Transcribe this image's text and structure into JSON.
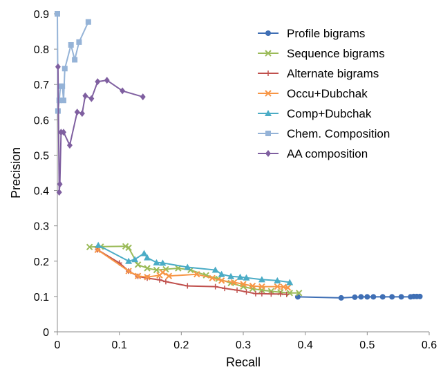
{
  "chart_data": {
    "type": "line",
    "title": "",
    "xlabel": "Recall",
    "ylabel": "Precision",
    "xlim": [
      0,
      0.6
    ],
    "ylim": [
      0,
      0.9
    ],
    "x_ticks": [
      "0",
      "0.1",
      "0.2",
      "0.3",
      "0.4",
      "0.5",
      "0.6"
    ],
    "y_ticks": [
      "0",
      "0.1",
      "0.2",
      "0.3",
      "0.4",
      "0.5",
      "0.6",
      "0.7",
      "0.8",
      "0.9"
    ],
    "grid": false,
    "legend_position": "top-right",
    "series": [
      {
        "name": "Profile bigrams",
        "color": "#3F6FB5",
        "marker": "circle",
        "points": [
          [
            0.388,
            0.099
          ],
          [
            0.458,
            0.096
          ],
          [
            0.48,
            0.098
          ],
          [
            0.49,
            0.099
          ],
          [
            0.5,
            0.099
          ],
          [
            0.51,
            0.099
          ],
          [
            0.525,
            0.099
          ],
          [
            0.54,
            0.099
          ],
          [
            0.555,
            0.099
          ],
          [
            0.57,
            0.099
          ],
          [
            0.575,
            0.1
          ],
          [
            0.58,
            0.1
          ],
          [
            0.585,
            0.1
          ]
        ]
      },
      {
        "name": "Sequence bigrams",
        "color": "#9BBB59",
        "marker": "x",
        "points": [
          [
            0.052,
            0.24
          ],
          [
            0.07,
            0.241
          ],
          [
            0.11,
            0.242
          ],
          [
            0.115,
            0.238
          ],
          [
            0.13,
            0.19
          ],
          [
            0.145,
            0.18
          ],
          [
            0.16,
            0.175
          ],
          [
            0.175,
            0.177
          ],
          [
            0.195,
            0.18
          ],
          [
            0.215,
            0.175
          ],
          [
            0.24,
            0.16
          ],
          [
            0.26,
            0.15
          ],
          [
            0.28,
            0.138
          ],
          [
            0.3,
            0.128
          ],
          [
            0.315,
            0.122
          ],
          [
            0.33,
            0.118
          ],
          [
            0.345,
            0.115
          ],
          [
            0.36,
            0.112
          ],
          [
            0.375,
            0.11
          ],
          [
            0.39,
            0.11
          ]
        ]
      },
      {
        "name": "Alternate bigrams",
        "color": "#C0504D",
        "marker": "plus",
        "points": [
          [
            0.065,
            0.232
          ],
          [
            0.1,
            0.195
          ],
          [
            0.115,
            0.172
          ],
          [
            0.13,
            0.157
          ],
          [
            0.145,
            0.152
          ],
          [
            0.165,
            0.147
          ],
          [
            0.175,
            0.142
          ],
          [
            0.21,
            0.13
          ],
          [
            0.255,
            0.128
          ],
          [
            0.27,
            0.123
          ],
          [
            0.29,
            0.118
          ],
          [
            0.305,
            0.113
          ],
          [
            0.32,
            0.108
          ],
          [
            0.33,
            0.108
          ],
          [
            0.345,
            0.107
          ],
          [
            0.36,
            0.107
          ],
          [
            0.37,
            0.106
          ]
        ]
      },
      {
        "name": "Occu+Dubchak",
        "color": "#F79646",
        "marker": "x",
        "points": [
          [
            0.065,
            0.232
          ],
          [
            0.115,
            0.172
          ],
          [
            0.13,
            0.158
          ],
          [
            0.145,
            0.155
          ],
          [
            0.165,
            0.16
          ],
          [
            0.17,
            0.168
          ],
          [
            0.18,
            0.158
          ],
          [
            0.225,
            0.163
          ],
          [
            0.25,
            0.152
          ],
          [
            0.265,
            0.145
          ],
          [
            0.285,
            0.14
          ],
          [
            0.3,
            0.135
          ],
          [
            0.315,
            0.13
          ],
          [
            0.33,
            0.128
          ],
          [
            0.355,
            0.128
          ],
          [
            0.365,
            0.127
          ],
          [
            0.372,
            0.125
          ]
        ]
      },
      {
        "name": "Comp+Dubchak",
        "color": "#4BACC6",
        "marker": "triangle",
        "points": [
          [
            0.066,
            0.245
          ],
          [
            0.115,
            0.2
          ],
          [
            0.125,
            0.205
          ],
          [
            0.14,
            0.222
          ],
          [
            0.145,
            0.21
          ],
          [
            0.16,
            0.196
          ],
          [
            0.17,
            0.195
          ],
          [
            0.21,
            0.183
          ],
          [
            0.255,
            0.175
          ],
          [
            0.265,
            0.163
          ],
          [
            0.28,
            0.157
          ],
          [
            0.295,
            0.155
          ],
          [
            0.305,
            0.153
          ],
          [
            0.33,
            0.148
          ],
          [
            0.355,
            0.145
          ],
          [
            0.375,
            0.14
          ]
        ]
      },
      {
        "name": "Chem. Composition",
        "color": "#95B3D7",
        "marker": "square",
        "points": [
          [
            0.0,
            0.9
          ],
          [
            0.001,
            0.625
          ],
          [
            0.003,
            0.655
          ],
          [
            0.005,
            0.695
          ],
          [
            0.008,
            0.695
          ],
          [
            0.01,
            0.655
          ],
          [
            0.012,
            0.745
          ],
          [
            0.022,
            0.812
          ],
          [
            0.028,
            0.77
          ],
          [
            0.035,
            0.82
          ],
          [
            0.05,
            0.877
          ]
        ]
      },
      {
        "name": "AA composition",
        "color": "#7F5FA0",
        "marker": "diamond",
        "points": [
          [
            0.001,
            0.75
          ],
          [
            0.003,
            0.395
          ],
          [
            0.004,
            0.418
          ],
          [
            0.006,
            0.565
          ],
          [
            0.01,
            0.565
          ],
          [
            0.02,
            0.528
          ],
          [
            0.032,
            0.622
          ],
          [
            0.04,
            0.618
          ],
          [
            0.045,
            0.668
          ],
          [
            0.055,
            0.66
          ],
          [
            0.065,
            0.708
          ],
          [
            0.08,
            0.712
          ],
          [
            0.105,
            0.682
          ],
          [
            0.138,
            0.665
          ]
        ]
      }
    ]
  }
}
